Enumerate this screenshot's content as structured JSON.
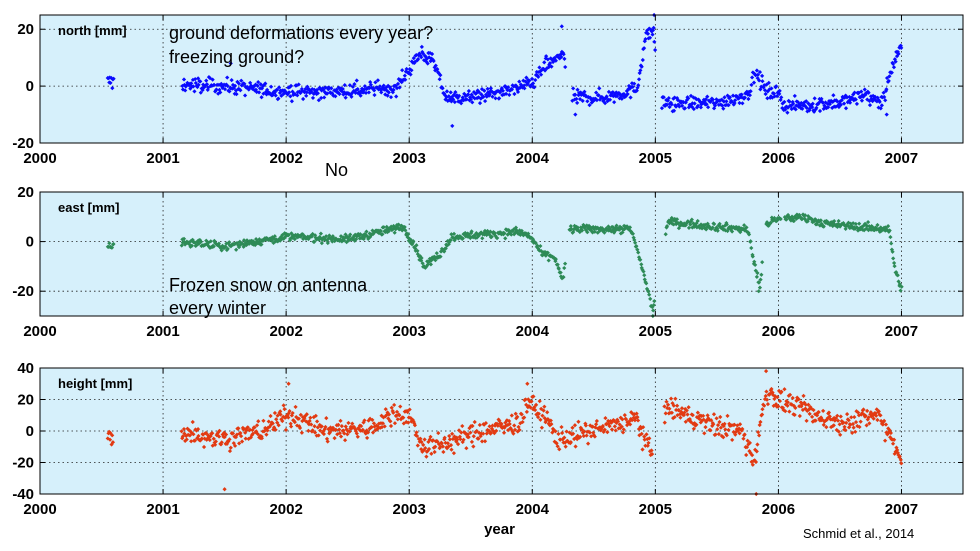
{
  "figure": {
    "xlabel": "year",
    "source": "Schmid et al., 2014",
    "annotations": {
      "question_1": "ground deformations every year?",
      "question_2": "freezing ground?",
      "answer": "No",
      "snow_1": "Frozen snow on antenna",
      "snow_2": "every winter"
    }
  },
  "colors": {
    "plot_bg": "#d6f0fb",
    "grid": "#222222",
    "north": "#0a0aff",
    "east": "#2e8b57",
    "height": "#e23a12"
  },
  "chart_data": [
    {
      "id": "north",
      "type": "scatter",
      "ylabel": "north [mm]",
      "xlim": [
        2000,
        2007.5
      ],
      "ylim": [
        -20,
        25
      ],
      "xticks": [
        2000,
        2001,
        2002,
        2003,
        2004,
        2005,
        2006,
        2007
      ],
      "yticks": [
        -20,
        0,
        20
      ],
      "grid": true,
      "color": "north",
      "markers": "diamond",
      "trend": [
        [
          2000.55,
          1.5
        ],
        [
          2001.15,
          0.5
        ],
        [
          2001.5,
          0
        ],
        [
          2002.0,
          -2
        ],
        [
          2002.5,
          -2
        ],
        [
          2002.9,
          -0.5
        ],
        [
          2003.0,
          6
        ],
        [
          2003.1,
          12
        ],
        [
          2003.2,
          8
        ],
        [
          2003.3,
          -4
        ],
        [
          2003.5,
          -4
        ],
        [
          2003.8,
          -2
        ],
        [
          2004.0,
          1
        ],
        [
          2004.1,
          7
        ],
        [
          2004.2,
          9
        ],
        [
          2004.25,
          13
        ],
        [
          2004.3,
          -4
        ],
        [
          2004.6,
          -4
        ],
        [
          2004.85,
          -1
        ],
        [
          2004.92,
          17
        ],
        [
          2004.98,
          20
        ],
        [
          2005.05,
          -6
        ],
        [
          2005.5,
          -6
        ],
        [
          2005.75,
          -3
        ],
        [
          2005.82,
          5
        ],
        [
          2005.9,
          -2
        ],
        [
          2006.0,
          -2
        ],
        [
          2006.05,
          -7
        ],
        [
          2006.5,
          -6
        ],
        [
          2006.7,
          -3
        ],
        [
          2006.85,
          -6
        ],
        [
          2006.9,
          4
        ],
        [
          2007.0,
          14
        ]
      ],
      "gaps": [
        [
          2000.6,
          2001.15
        ],
        [
          2004.27,
          2004.32
        ],
        [
          2005.0,
          2005.05
        ]
      ],
      "noise": 2.6,
      "outliers": [
        [
          2003.35,
          -14
        ],
        [
          2004.35,
          -10
        ],
        [
          2006.88,
          -10
        ],
        [
          2004.24,
          21
        ],
        [
          2004.99,
          25
        ],
        [
          2001.55,
          8
        ]
      ]
    },
    {
      "id": "east",
      "type": "scatter",
      "ylabel": "east [mm]",
      "xlim": [
        2000,
        2007.5
      ],
      "ylim": [
        -30,
        20
      ],
      "xticks": [
        2000,
        2001,
        2002,
        2003,
        2004,
        2005,
        2006,
        2007
      ],
      "yticks": [
        -20,
        0,
        20
      ],
      "grid": true,
      "color": "east",
      "markers": "diamond",
      "trend": [
        [
          2000.55,
          -2
        ],
        [
          2001.15,
          0
        ],
        [
          2001.5,
          -2
        ],
        [
          2002.0,
          2
        ],
        [
          2002.5,
          1
        ],
        [
          2002.95,
          6
        ],
        [
          2003.05,
          -2
        ],
        [
          2003.12,
          -10
        ],
        [
          2003.25,
          -5
        ],
        [
          2003.35,
          2
        ],
        [
          2003.9,
          4
        ],
        [
          2004.0,
          1
        ],
        [
          2004.08,
          -5
        ],
        [
          2004.18,
          -6
        ],
        [
          2004.25,
          -16
        ],
        [
          2004.3,
          5
        ],
        [
          2004.8,
          5
        ],
        [
          2004.88,
          -8
        ],
        [
          2004.93,
          -18
        ],
        [
          2004.98,
          -28
        ],
        [
          2005.1,
          8
        ],
        [
          2005.5,
          6
        ],
        [
          2005.75,
          5
        ],
        [
          2005.8,
          -8
        ],
        [
          2005.85,
          -18
        ],
        [
          2005.9,
          7
        ],
        [
          2006.0,
          9
        ],
        [
          2006.2,
          10
        ],
        [
          2006.4,
          7
        ],
        [
          2006.9,
          5
        ],
        [
          2006.95,
          -12
        ],
        [
          2007.0,
          -19
        ]
      ],
      "gaps": [
        [
          2000.6,
          2001.15
        ],
        [
          2004.27,
          2004.3
        ],
        [
          2005.0,
          2005.08
        ],
        [
          2005.87,
          2005.9
        ],
        [
          2006.02,
          2006.05
        ]
      ],
      "noise": 1.6,
      "outliers": [
        [
          2004.98,
          -30
        ],
        [
          2005.84,
          -20
        ]
      ]
    },
    {
      "id": "height",
      "type": "scatter",
      "ylabel": "height [mm]",
      "xlim": [
        2000,
        2007.5
      ],
      "ylim": [
        -40,
        40
      ],
      "xticks": [
        2000,
        2001,
        2002,
        2003,
        2004,
        2005,
        2006,
        2007
      ],
      "yticks": [
        -40,
        -20,
        0,
        20,
        40
      ],
      "grid": true,
      "color": "height",
      "markers": "diamond",
      "trend": [
        [
          2000.55,
          -5
        ],
        [
          2001.15,
          0
        ],
        [
          2001.5,
          -5
        ],
        [
          2001.8,
          0
        ],
        [
          2002.0,
          10
        ],
        [
          2002.1,
          8
        ],
        [
          2002.3,
          0
        ],
        [
          2002.7,
          2
        ],
        [
          2002.9,
          12
        ],
        [
          2003.0,
          10
        ],
        [
          2003.1,
          -10
        ],
        [
          2003.3,
          -8
        ],
        [
          2003.6,
          0
        ],
        [
          2003.9,
          5
        ],
        [
          2003.95,
          18
        ],
        [
          2004.1,
          10
        ],
        [
          2004.2,
          -5
        ],
        [
          2004.5,
          0
        ],
        [
          2004.85,
          8
        ],
        [
          2004.9,
          -5
        ],
        [
          2004.98,
          -15
        ],
        [
          2005.1,
          15
        ],
        [
          2005.4,
          5
        ],
        [
          2005.7,
          0
        ],
        [
          2005.8,
          -20
        ],
        [
          2005.9,
          25
        ],
        [
          2006.0,
          20
        ],
        [
          2006.3,
          10
        ],
        [
          2006.5,
          5
        ],
        [
          2006.8,
          10
        ],
        [
          2006.9,
          0
        ],
        [
          2007.0,
          -20
        ]
      ],
      "gaps": [
        [
          2000.6,
          2001.15
        ],
        [
          2004.98,
          2005.07
        ]
      ],
      "noise": 7,
      "outliers": [
        [
          2001.5,
          -37
        ],
        [
          2005.82,
          -40
        ],
        [
          2005.9,
          38
        ],
        [
          2003.96,
          30
        ],
        [
          2002.02,
          30
        ]
      ]
    }
  ]
}
